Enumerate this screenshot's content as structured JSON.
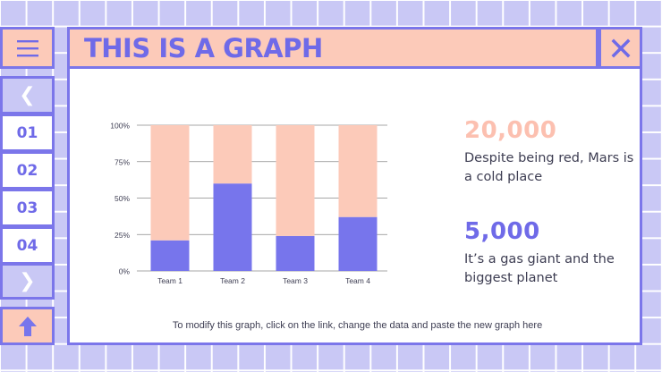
{
  "header": {
    "title": "THIS IS A GRAPH"
  },
  "nav": {
    "menu_icon": "hamburger-icon",
    "prev_label": "❮",
    "items": [
      "01",
      "02",
      "03",
      "04"
    ],
    "next_label": "❯",
    "up_icon": "arrow-up-icon",
    "close_icon": "close-icon"
  },
  "stats": [
    {
      "value": "20,000",
      "text": "Despite being red, Mars is a cold place",
      "color": "#fcc0b0"
    },
    {
      "value": "5,000",
      "text": "It’s a gas giant and the biggest planet",
      "color": "#6f6ae8"
    }
  ],
  "footer": {
    "note": "To modify this graph, click on the link, change the data and paste the new graph here"
  },
  "colors": {
    "accent": "#7b76ea",
    "peach": "#fccab9",
    "lilac": "#c9c8f5"
  },
  "chart_data": {
    "type": "bar",
    "stacked": true,
    "categories": [
      "Team 1",
      "Team 2",
      "Team 3",
      "Team 4"
    ],
    "series": [
      {
        "values": [
          21,
          60,
          24,
          37
        ],
        "color": "#7775ec"
      },
      {
        "values": [
          79,
          40,
          76,
          63
        ],
        "color": "#fccab9"
      }
    ],
    "yticks": [
      "0%",
      "25%",
      "50%",
      "75%",
      "100%"
    ],
    "ylim": [
      0,
      100
    ],
    "grid": true,
    "legend": "none"
  }
}
